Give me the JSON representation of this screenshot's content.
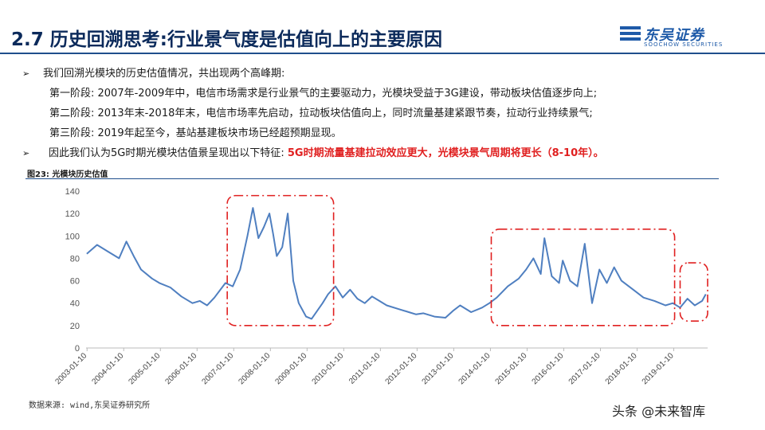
{
  "header": {
    "title": "2.7 历史回溯思考:行业景气度是估值向上的主要原因",
    "logo_cn": "东吴证券",
    "logo_en": "SOOCHOW SECURITIES"
  },
  "bullets": {
    "intro": "我们回溯光模块的历史估值情况，共出现两个高峰期:",
    "stage1": "第一阶段: 2007年-2009年中，电信市场需求是行业景气的主要驱动力，光模块受益于3G建设，带动板块估值逐步向上;",
    "stage2": "第二阶段: 2013年末-2018年末，电信市场率先启动，拉动板块估值向上，同时流量基建紧跟节奏，拉动行业持续景气;",
    "stage3": "第三阶段: 2019年起至今，基站基建板块市场已经超预期显现。",
    "conclusion_prefix": "因此我们认为5G时期光模块估值景呈现出以下特征:",
    "conclusion_highlight": "5G时期流量基建拉动效应更大，光模块景气周期将更长（8-10年）。"
  },
  "figure": {
    "label": "图23: 光模块历史估值",
    "source": "数据来源: wind,东吴证券研究所"
  },
  "watermark": "头条 @未来智库",
  "colors": {
    "series": "#4f7fc0",
    "highlight": "#e02020",
    "title": "#0b2a5b",
    "rule": "#1f4e8c"
  },
  "chart_data": {
    "type": "line",
    "x_start": "2003-01-10",
    "x_end": "2019-12",
    "x_ticks": [
      "2003-01-10",
      "2004-01-10",
      "2005-01-10",
      "2006-01-10",
      "2007-01-10",
      "2008-01-10",
      "2009-01-10",
      "2010-01-10",
      "2011-01-10",
      "2012-01-10",
      "2013-01-10",
      "2014-01-10",
      "2015-01-10",
      "2016-01-10",
      "2017-01-10",
      "2018-01-10",
      "2019-01-10"
    ],
    "y_ticks": [
      0,
      20,
      40,
      60,
      80,
      100,
      120,
      140
    ],
    "ylim": [
      0,
      140
    ],
    "series": [
      {
        "x": [
          2003.02,
          2003.3,
          2003.6,
          2003.9,
          2004.1,
          2004.3,
          2004.5,
          2004.8,
          2005.0,
          2005.3,
          2005.6,
          2005.9,
          2006.1,
          2006.3,
          2006.5,
          2006.8,
          2007.0,
          2007.2,
          2007.4,
          2007.55,
          2007.7,
          2007.85,
          2008.0,
          2008.1,
          2008.2,
          2008.35,
          2008.5,
          2008.65,
          2008.8,
          2009.0,
          2009.15,
          2009.3,
          2009.45,
          2009.6,
          2009.8,
          2010.0,
          2010.2,
          2010.4,
          2010.6,
          2010.8,
          2011.0,
          2011.2,
          2011.5,
          2011.8,
          2012.0,
          2012.2,
          2012.5,
          2012.8,
          2013.0,
          2013.2,
          2013.5,
          2013.8,
          2014.0,
          2014.2,
          2014.5,
          2014.8,
          2015.0,
          2015.2,
          2015.4,
          2015.5,
          2015.7,
          2015.9,
          2016.0,
          2016.2,
          2016.4,
          2016.6,
          2016.8,
          2017.0,
          2017.2,
          2017.4,
          2017.6,
          2017.8,
          2018.0,
          2018.2,
          2018.5,
          2018.8,
          2019.0,
          2019.2,
          2019.4,
          2019.6,
          2019.8,
          2019.9
        ],
        "y": [
          84,
          92,
          86,
          80,
          95,
          82,
          70,
          62,
          58,
          54,
          46,
          40,
          42,
          38,
          45,
          58,
          55,
          70,
          100,
          125,
          98,
          108,
          120,
          102,
          82,
          90,
          120,
          60,
          40,
          28,
          26,
          33,
          40,
          48,
          55,
          45,
          52,
          44,
          40,
          46,
          42,
          38,
          35,
          32,
          30,
          31,
          28,
          27,
          33,
          38,
          32,
          36,
          40,
          45,
          55,
          62,
          70,
          80,
          66,
          98,
          64,
          58,
          78,
          60,
          55,
          93,
          40,
          70,
          58,
          72,
          60,
          55,
          50,
          45,
          42,
          38,
          40,
          36,
          44,
          38,
          42,
          48
        ]
      }
    ]
  }
}
